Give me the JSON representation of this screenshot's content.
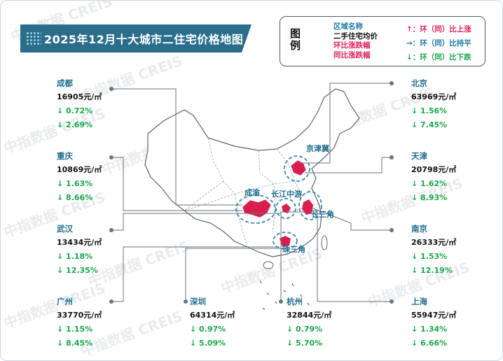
{
  "title": "2025年12月十大城市二住宅价格地图",
  "watermark": "中指数据 CREIS",
  "legend": {
    "title": "图例",
    "region_name": "区域名称",
    "avg_price": "二手住宅均价",
    "mom_change": "环比涨跌幅",
    "yoy_change": "同比涨跌幅",
    "rise": "↑：环（同）比上涨",
    "flat": "→：环（同）比持平",
    "fall": "↓：环（同）比下跌"
  },
  "regions": {
    "jingjinji": "京津冀",
    "chengyu": "成渝",
    "changjiang": "长江中游",
    "changsanjiao": "长三角",
    "zhusanjiao": "珠三角"
  },
  "cities": {
    "chengdu": {
      "name": "成都",
      "price": "16905元/㎡",
      "mom": "↓ 0.72%",
      "yoy": "↓ 2.69%"
    },
    "chongqing": {
      "name": "重庆",
      "price": "10869元/㎡",
      "mom": "↓ 1.63%",
      "yoy": "↓ 8.66%"
    },
    "wuhan": {
      "name": "武汉",
      "price": "13434元/㎡",
      "mom": "↓ 1.18%",
      "yoy": "↓ 12.35%"
    },
    "guangzhou": {
      "name": "广州",
      "price": "33770元/㎡",
      "mom": "↓ 1.15%",
      "yoy": "↓ 8.45%"
    },
    "shenzhen": {
      "name": "深圳",
      "price": "64314元/㎡",
      "mom": "↓ 0.97%",
      "yoy": "↓ 5.09%"
    },
    "hangzhou": {
      "name": "杭州",
      "price": "32844元/㎡",
      "mom": "↓ 0.79%",
      "yoy": "↓ 5.70%"
    },
    "shanghai": {
      "name": "上海",
      "price": "55947元/㎡",
      "mom": "↓ 1.34%",
      "yoy": "↓ 6.66%"
    },
    "beijing": {
      "name": "北京",
      "price": "63969元/㎡",
      "mom": "↓ 1.56%",
      "yoy": "↓ 7.45%"
    },
    "tianjin": {
      "name": "天津",
      "price": "20798元/㎡",
      "mom": "↓ 1.62%",
      "yoy": "↓ 8.93%"
    },
    "nanjing": {
      "name": "南京",
      "price": "26333元/㎡",
      "mom": "↓ 1.53%",
      "yoy": "↓ 12.19%"
    }
  },
  "colors": {
    "title_bg": "#2a6e8c",
    "city_name": "#1f6e8e",
    "down": "#19a84a",
    "highlight_fill": "#d81e4f",
    "region_circle": "#3d86b0"
  }
}
